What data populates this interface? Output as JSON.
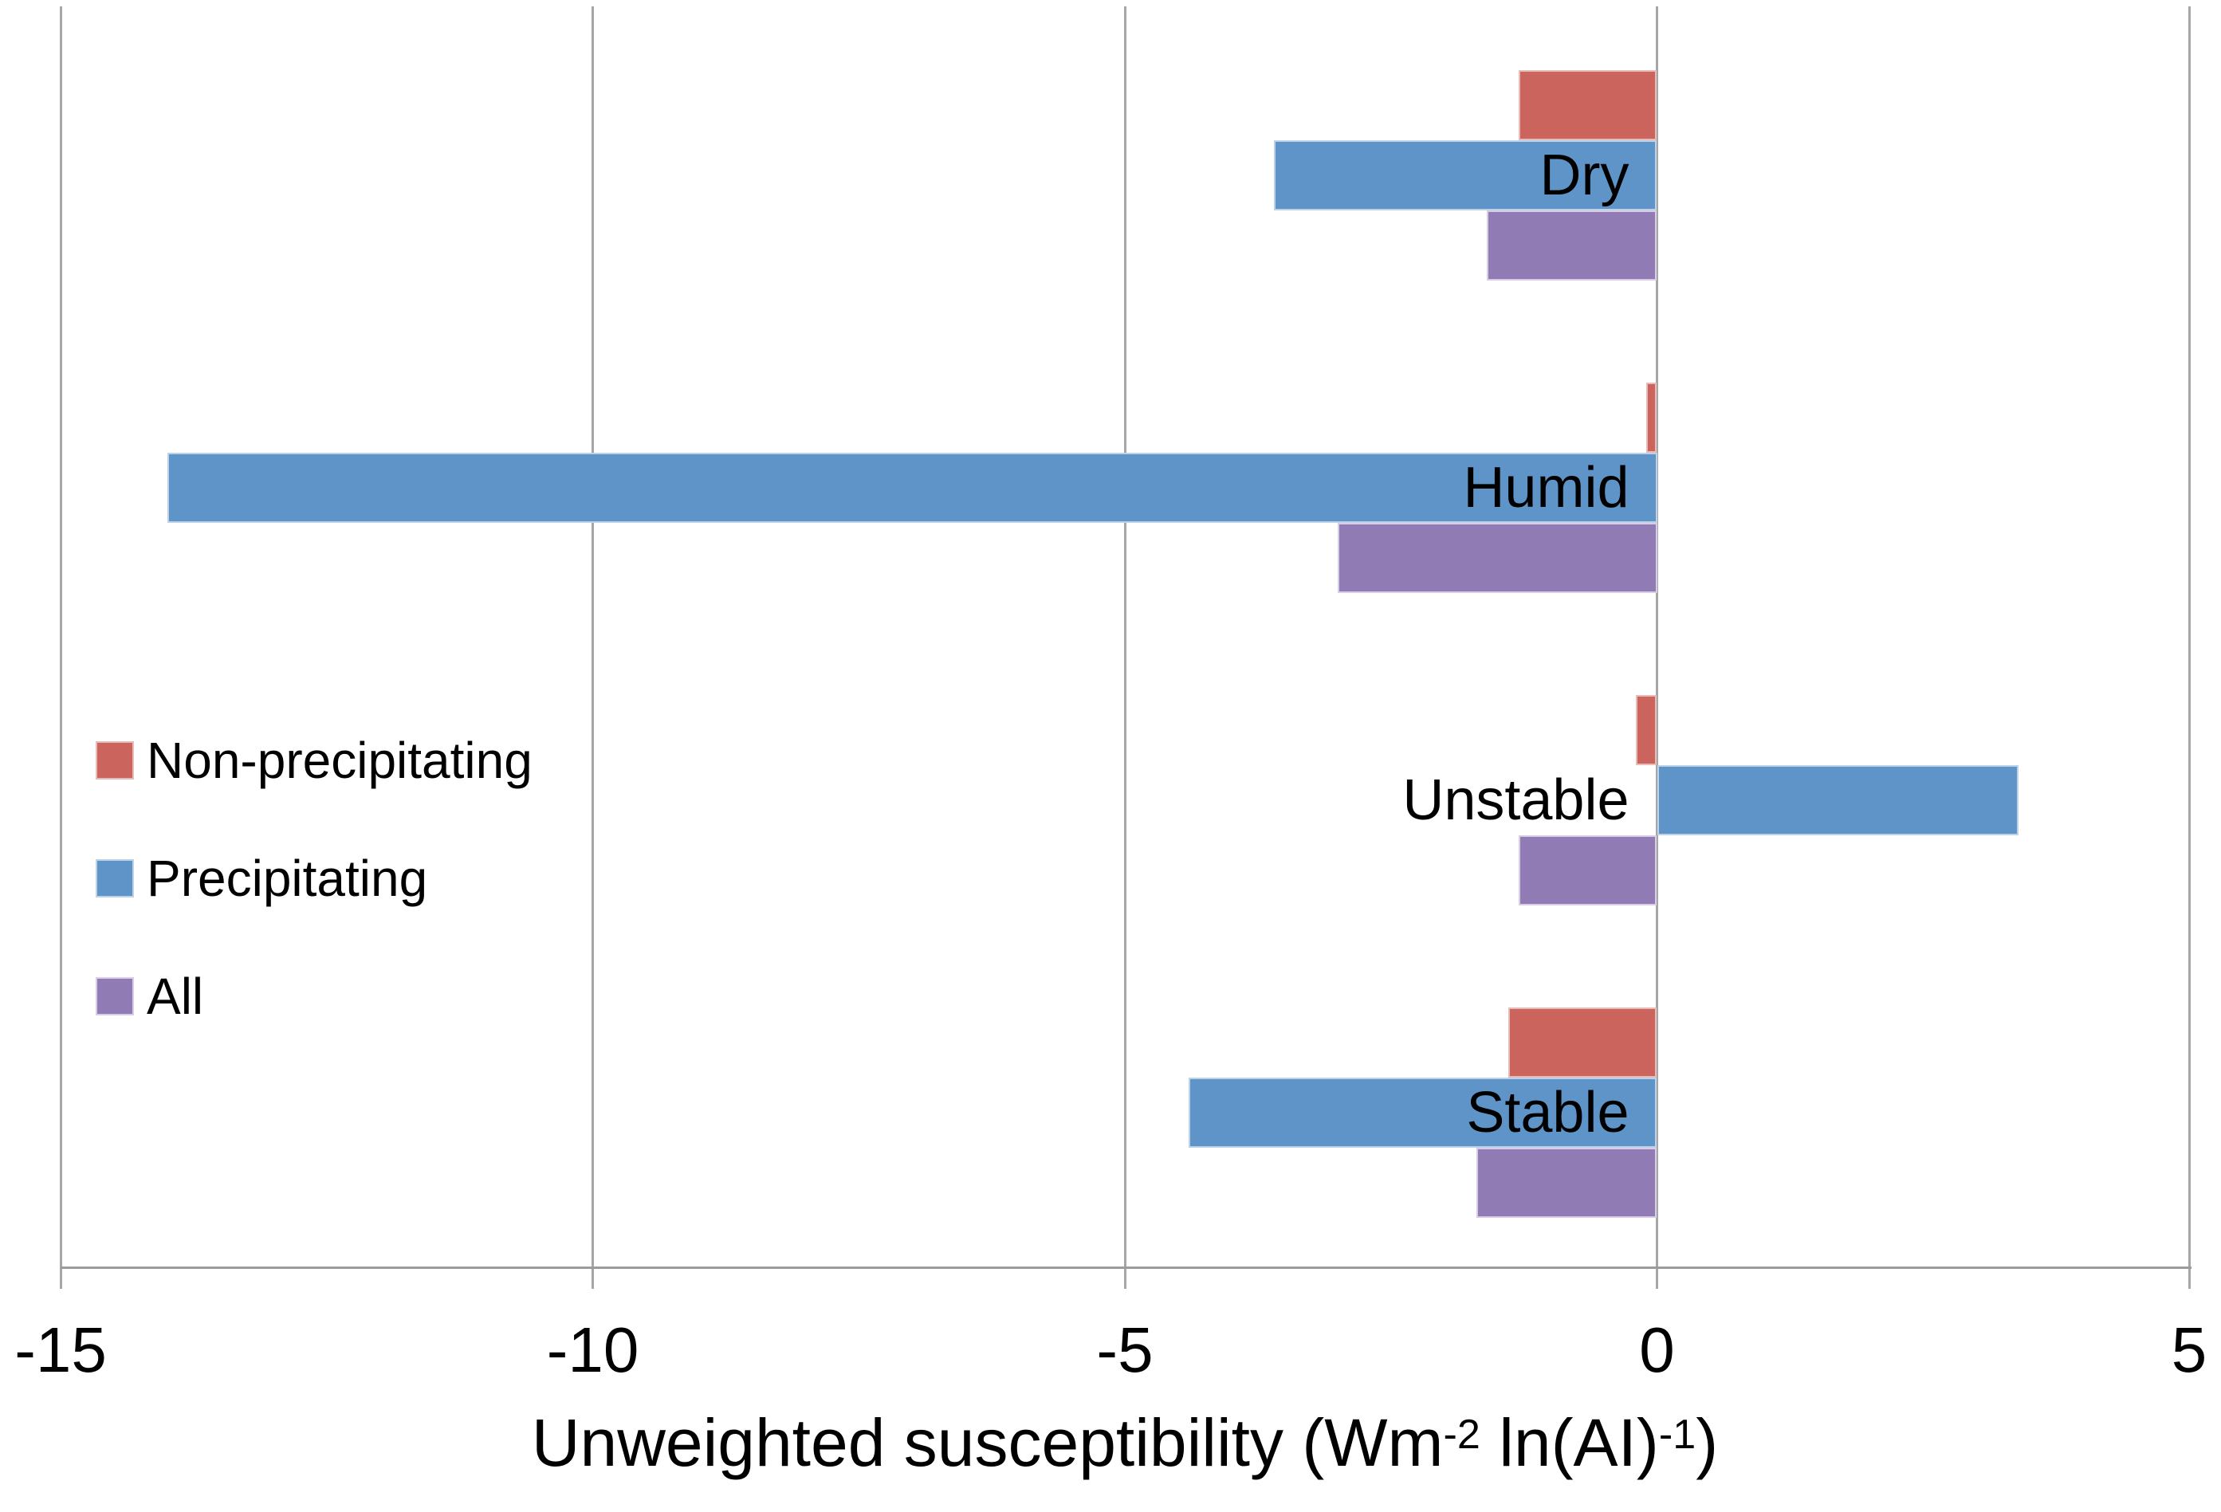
{
  "chart_data": {
    "type": "bar",
    "orientation": "horizontal",
    "xlabel": "Unweighted susceptibility (Wm-2 ln(AI)-1)",
    "xlabel_parts": {
      "p1": "Unweighted susceptibility (Wm",
      "sup1": "-2",
      "p2": " ln(AI)",
      "sup2": "-1",
      "p3": ")"
    },
    "categories": [
      "Dry",
      "Humid",
      "Unstable",
      "Stable"
    ],
    "series": [
      {
        "name": "Non-precipitating",
        "color": "#CA645D",
        "border_color": "#E7BBB7",
        "values": [
          -1.3,
          -0.1,
          -0.2,
          -1.4
        ]
      },
      {
        "name": "Precipitating",
        "color": "#5F94C8",
        "border_color": "#BDD1E9",
        "values": [
          -3.6,
          -14.0,
          3.4,
          -4.4
        ]
      },
      {
        "name": "All",
        "color": "#917BB4",
        "border_color": "#D7CDE7",
        "values": [
          -1.6,
          -3.0,
          -1.3,
          -1.7
        ]
      }
    ],
    "xlim": [
      -15,
      5
    ],
    "xticks": [
      -15,
      -10,
      -5,
      0,
      5
    ],
    "xtick_labels": [
      "-15",
      "-10",
      "-5",
      "0",
      "5"
    ],
    "grid": "vertical",
    "legend_position": "middle-left",
    "gridline_color": "#A6A6A6",
    "axis_line_color": "#9B9B9B",
    "text_color": "#000000",
    "background": "#FFFFFF"
  }
}
